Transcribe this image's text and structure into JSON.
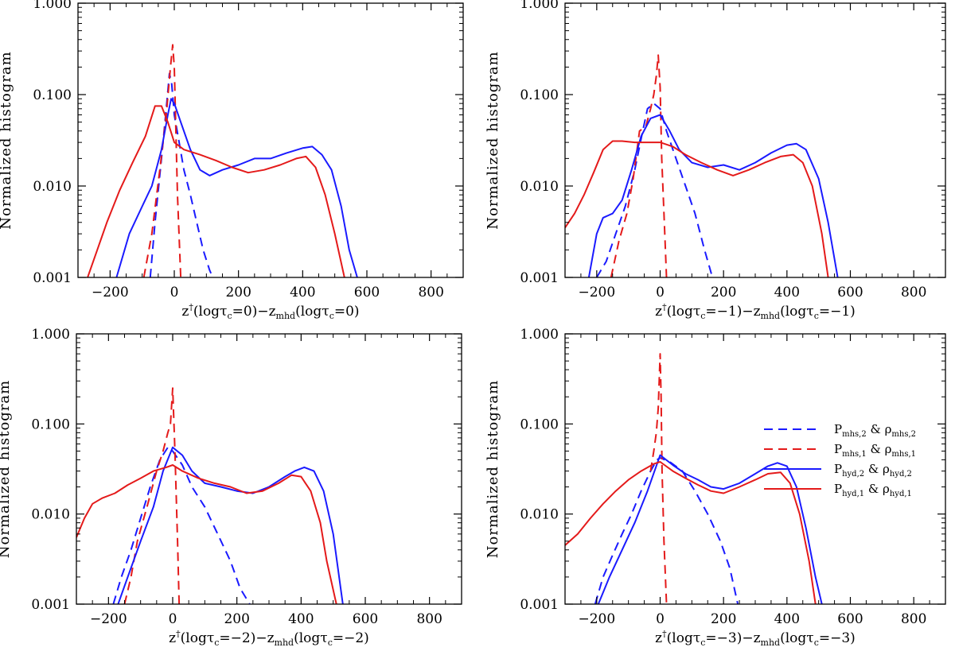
{
  "chart_data": [
    {
      "type": "line",
      "panel": "top-left",
      "ylabel": "Normalized histogram",
      "xlabel": {
        "a": "z",
        "sup": "†",
        "b": "(logτ",
        "c_sub": "c",
        "d": "=0)−z",
        "e_sub": "mhd",
        "f": "(logτ",
        "g_sub": "c",
        "h": "=0)"
      },
      "xlim": [
        -300,
        900
      ],
      "ylim": [
        0.001,
        1.0
      ],
      "yscale": "log",
      "xticks": [
        -200,
        0,
        200,
        400,
        600,
        800
      ],
      "yticks": [
        "1.000",
        "0.100",
        "0.010",
        "0.001"
      ],
      "series": [
        {
          "name": "P_mhs,2 & rho_mhs,2",
          "color": "#1a1aff",
          "dash": true,
          "x": [
            -75,
            -60,
            -40,
            -25,
            -15,
            -8,
            0,
            15,
            30,
            50,
            70,
            90,
            110,
            120
          ],
          "y": [
            0.001,
            0.004,
            0.02,
            0.07,
            0.17,
            0.13,
            0.06,
            0.03,
            0.015,
            0.008,
            0.004,
            0.002,
            0.0012,
            0.001
          ]
        },
        {
          "name": "P_mhs,1 & rho_mhs,1",
          "color": "#e41a1a",
          "dash": true,
          "x": [
            -95,
            -70,
            -45,
            -25,
            -12,
            -5,
            0,
            5,
            10,
            20
          ],
          "y": [
            0.001,
            0.003,
            0.015,
            0.06,
            0.2,
            0.35,
            0.2,
            0.04,
            0.008,
            0.001
          ]
        },
        {
          "name": "P_hyd,2 & rho_hyd,2",
          "color": "#1a1aff",
          "dash": false,
          "x": [
            -180,
            -140,
            -100,
            -70,
            -40,
            -20,
            -10,
            0,
            20,
            50,
            80,
            110,
            150,
            200,
            250,
            300,
            350,
            400,
            430,
            460,
            490,
            520,
            545,
            570
          ],
          "y": [
            0.001,
            0.003,
            0.006,
            0.01,
            0.025,
            0.06,
            0.09,
            0.08,
            0.05,
            0.025,
            0.015,
            0.013,
            0.015,
            0.017,
            0.02,
            0.02,
            0.023,
            0.026,
            0.027,
            0.022,
            0.015,
            0.006,
            0.002,
            0.001
          ]
        },
        {
          "name": "P_hyd,1 & rho_hyd,1",
          "color": "#e41a1a",
          "dash": false,
          "x": [
            -270,
            -240,
            -210,
            -170,
            -130,
            -90,
            -60,
            -40,
            -20,
            0,
            30,
            80,
            130,
            180,
            230,
            280,
            330,
            380,
            410,
            440,
            470,
            500,
            530
          ],
          "y": [
            0.001,
            0.002,
            0.004,
            0.009,
            0.018,
            0.035,
            0.075,
            0.075,
            0.05,
            0.03,
            0.025,
            0.022,
            0.019,
            0.016,
            0.014,
            0.015,
            0.017,
            0.02,
            0.021,
            0.016,
            0.008,
            0.003,
            0.001
          ]
        }
      ]
    },
    {
      "type": "line",
      "panel": "top-right",
      "ylabel": "Normalized histogram",
      "xlabel": {
        "a": "z",
        "sup": "†",
        "b": "(logτ",
        "c_sub": "c",
        "d": "=−1)−z",
        "e_sub": "mhd",
        "f": "(logτ",
        "g_sub": "c",
        "h": "=−1)"
      },
      "xlim": [
        -300,
        900
      ],
      "ylim": [
        0.001,
        1.0
      ],
      "yscale": "log",
      "xticks": [
        -200,
        0,
        200,
        400,
        600,
        800
      ],
      "yticks": [
        "1.000",
        "0.100",
        "0.010",
        "0.001"
      ],
      "series": [
        {
          "name": "P_mhs,2 & rho_mhs,2",
          "color": "#1a1aff",
          "dash": true,
          "x": [
            -200,
            -170,
            -140,
            -110,
            -80,
            -55,
            -40,
            -20,
            0,
            20,
            50,
            80,
            110,
            140,
            165
          ],
          "y": [
            0.001,
            0.0015,
            0.003,
            0.006,
            0.015,
            0.04,
            0.07,
            0.08,
            0.07,
            0.04,
            0.02,
            0.01,
            0.005,
            0.002,
            0.001
          ]
        },
        {
          "name": "P_mhs,1 & rho_mhs,1",
          "color": "#e41a1a",
          "dash": true,
          "x": [
            -155,
            -130,
            -105,
            -85,
            -65,
            -45,
            -30,
            -20,
            -12,
            -6,
            0,
            5,
            12,
            20
          ],
          "y": [
            0.001,
            0.0025,
            0.005,
            0.012,
            0.04,
            0.045,
            0.07,
            0.1,
            0.16,
            0.27,
            0.12,
            0.02,
            0.005,
            0.001
          ]
        },
        {
          "name": "P_hyd,2 & rho_hyd,2",
          "color": "#1a1aff",
          "dash": false,
          "x": [
            -225,
            -200,
            -180,
            -150,
            -120,
            -90,
            -60,
            -30,
            0,
            30,
            60,
            100,
            150,
            200,
            250,
            300,
            350,
            400,
            430,
            460,
            500,
            530,
            560
          ],
          "y": [
            0.001,
            0.003,
            0.0045,
            0.005,
            0.007,
            0.015,
            0.035,
            0.055,
            0.06,
            0.04,
            0.025,
            0.018,
            0.016,
            0.017,
            0.015,
            0.018,
            0.023,
            0.028,
            0.029,
            0.025,
            0.012,
            0.004,
            0.001
          ]
        },
        {
          "name": "P_hyd,1 & rho_hyd,1",
          "color": "#e41a1a",
          "dash": false,
          "x": [
            -300,
            -270,
            -240,
            -210,
            -180,
            -150,
            -120,
            -80,
            -40,
            0,
            40,
            80,
            130,
            180,
            230,
            280,
            330,
            380,
            420,
            450,
            480,
            510,
            530
          ],
          "y": [
            0.0035,
            0.005,
            0.008,
            0.014,
            0.025,
            0.031,
            0.031,
            0.03,
            0.03,
            0.03,
            0.027,
            0.022,
            0.018,
            0.015,
            0.013,
            0.015,
            0.018,
            0.021,
            0.022,
            0.018,
            0.01,
            0.003,
            0.001
          ]
        }
      ]
    },
    {
      "type": "line",
      "panel": "bottom-left",
      "ylabel": "Normalized histogram",
      "xlabel": {
        "a": "z",
        "sup": "†",
        "b": "(logτ",
        "c_sub": "c",
        "d": "=−2)−z",
        "e_sub": "mhd",
        "f": "(logτ",
        "g_sub": "c",
        "h": "=−2)"
      },
      "xlim": [
        -300,
        900
      ],
      "ylim": [
        0.001,
        1.0
      ],
      "yscale": "log",
      "xticks": [
        -200,
        0,
        200,
        400,
        600,
        800
      ],
      "yticks": [
        "1.000",
        "0.100",
        "0.010",
        "0.001"
      ],
      "series": [
        {
          "name": "P_mhs,2 & rho_mhs,2",
          "color": "#1a1aff",
          "dash": true,
          "x": [
            -185,
            -160,
            -130,
            -100,
            -70,
            -40,
            -15,
            0,
            30,
            60,
            100,
            140,
            180,
            210,
            240
          ],
          "y": [
            0.001,
            0.002,
            0.004,
            0.009,
            0.02,
            0.04,
            0.055,
            0.05,
            0.035,
            0.02,
            0.012,
            0.006,
            0.003,
            0.0015,
            0.001
          ]
        },
        {
          "name": "P_mhs,1 & rho_mhs,1",
          "color": "#e41a1a",
          "dash": true,
          "x": [
            -150,
            -130,
            -110,
            -80,
            -50,
            -30,
            -15,
            -7,
            0,
            7,
            15,
            20
          ],
          "y": [
            0.001,
            0.002,
            0.005,
            0.012,
            0.03,
            0.05,
            0.08,
            0.1,
            0.25,
            0.05,
            0.005,
            0.001
          ]
        },
        {
          "name": "P_hyd,2 & rho_hyd,2",
          "color": "#1a1aff",
          "dash": false,
          "x": [
            -170,
            -140,
            -100,
            -60,
            -30,
            0,
            30,
            60,
            100,
            150,
            200,
            250,
            300,
            350,
            380,
            410,
            440,
            470,
            500,
            530
          ],
          "y": [
            0.001,
            0.002,
            0.005,
            0.012,
            0.03,
            0.055,
            0.045,
            0.03,
            0.022,
            0.02,
            0.018,
            0.017,
            0.02,
            0.026,
            0.03,
            0.033,
            0.03,
            0.018,
            0.006,
            0.001
          ]
        },
        {
          "name": "P_hyd,1 & rho_hyd,1",
          "color": "#e41a1a",
          "dash": false,
          "x": [
            -300,
            -275,
            -250,
            -220,
            -180,
            -140,
            -100,
            -60,
            -20,
            0,
            30,
            80,
            130,
            180,
            230,
            280,
            330,
            370,
            400,
            430,
            460,
            480,
            510
          ],
          "y": [
            0.0055,
            0.009,
            0.013,
            0.015,
            0.017,
            0.021,
            0.025,
            0.03,
            0.033,
            0.035,
            0.03,
            0.025,
            0.022,
            0.02,
            0.017,
            0.018,
            0.022,
            0.027,
            0.026,
            0.018,
            0.008,
            0.003,
            0.001
          ]
        }
      ]
    },
    {
      "type": "line",
      "panel": "bottom-right",
      "ylabel": "Normalized histogram",
      "xlabel": {
        "a": "z",
        "sup": "†",
        "b": "(logτ",
        "c_sub": "c",
        "d": "=−3)−z",
        "e_sub": "mhd",
        "f": "(logτ",
        "g_sub": "c",
        "h": "=−3)"
      },
      "xlim": [
        -300,
        900
      ],
      "ylim": [
        0.001,
        1.0
      ],
      "yscale": "log",
      "xticks": [
        -200,
        0,
        200,
        400,
        600,
        800
      ],
      "yticks": [
        "1.000",
        "0.100",
        "0.010",
        "0.001"
      ],
      "legend": "top-right",
      "series": [
        {
          "name": "P_mhs,2 & rho_mhs,2",
          "color": "#1a1aff",
          "dash": true,
          "x": [
            -205,
            -180,
            -150,
            -120,
            -90,
            -60,
            -30,
            -10,
            0,
            30,
            70,
            110,
            150,
            190,
            220,
            245
          ],
          "y": [
            0.001,
            0.002,
            0.0035,
            0.006,
            0.01,
            0.018,
            0.03,
            0.04,
            0.042,
            0.038,
            0.03,
            0.018,
            0.01,
            0.005,
            0.0025,
            0.001
          ]
        },
        {
          "name": "P_mhs,1 & rho_mhs,1",
          "color": "#e41a1a",
          "dash": true,
          "x": [
            -30,
            -20,
            -12,
            -6,
            -3,
            0,
            3,
            6,
            12,
            20
          ],
          "y": [
            0.03,
            0.05,
            0.08,
            0.15,
            0.3,
            0.6,
            0.2,
            0.03,
            0.005,
            0.001
          ]
        },
        {
          "name": "P_hyd,2 & rho_hyd,2",
          "color": "#1a1aff",
          "dash": false,
          "x": [
            -195,
            -160,
            -120,
            -80,
            -40,
            0,
            40,
            80,
            120,
            160,
            200,
            250,
            300,
            340,
            370,
            400,
            430,
            460,
            490,
            510
          ],
          "y": [
            0.001,
            0.002,
            0.004,
            0.008,
            0.018,
            0.045,
            0.035,
            0.028,
            0.024,
            0.02,
            0.019,
            0.022,
            0.028,
            0.034,
            0.037,
            0.034,
            0.02,
            0.007,
            0.002,
            0.001
          ]
        },
        {
          "name": "P_hyd,1 & rho_hyd,1",
          "color": "#e41a1a",
          "dash": false,
          "x": [
            -300,
            -260,
            -220,
            -180,
            -140,
            -100,
            -60,
            -20,
            0,
            40,
            80,
            120,
            160,
            200,
            250,
            300,
            340,
            380,
            410,
            440,
            470,
            490
          ],
          "y": [
            0.0045,
            0.006,
            0.009,
            0.013,
            0.018,
            0.024,
            0.03,
            0.036,
            0.038,
            0.03,
            0.025,
            0.021,
            0.018,
            0.017,
            0.02,
            0.024,
            0.028,
            0.029,
            0.022,
            0.01,
            0.003,
            0.001
          ]
        }
      ]
    }
  ],
  "legend": {
    "amp": "&",
    "items": [
      {
        "p": "P",
        "p_sub": "mhs,2",
        "r": "ρ",
        "r_sub": "mhs,2",
        "color": "#1a1aff",
        "dash": true
      },
      {
        "p": "P",
        "p_sub": "mhs,1",
        "r": "ρ",
        "r_sub": "mhs,1",
        "color": "#e41a1a",
        "dash": true
      },
      {
        "p": "P",
        "p_sub": "hyd,2",
        "r": "ρ",
        "r_sub": "hyd,2",
        "color": "#1a1aff",
        "dash": false
      },
      {
        "p": "P",
        "p_sub": "hyd,1",
        "r": "ρ",
        "r_sub": "hyd,1",
        "color": "#e41a1a",
        "dash": false
      }
    ]
  }
}
